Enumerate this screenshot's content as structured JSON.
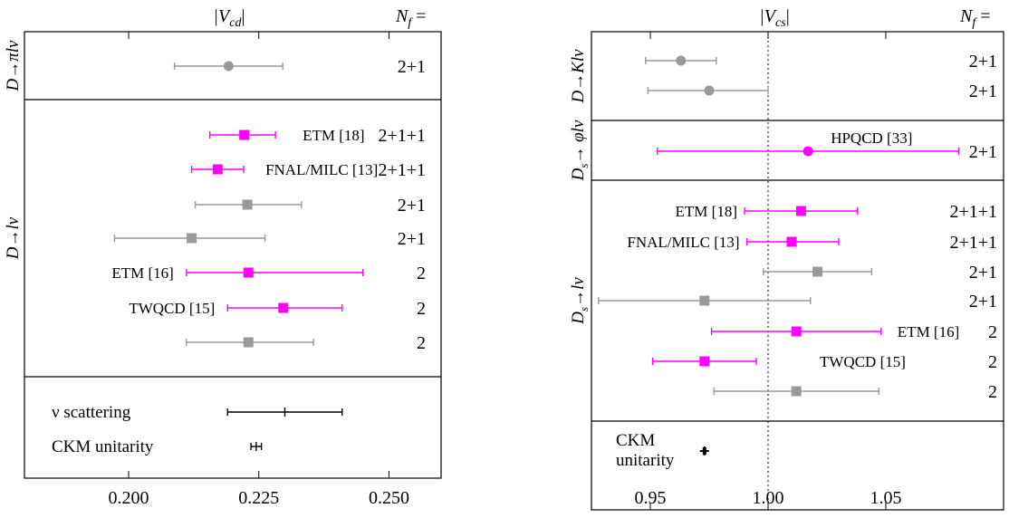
{
  "colors": {
    "lattice_highlight": "#ff00ff",
    "lattice_other": "#999999",
    "experiment": "#000000",
    "frame": "#000000"
  },
  "chart_data": [
    {
      "type": "scatter",
      "subtype": "error-bar forest plot",
      "title": "|V_cd|",
      "title_parts": [
        "|V",
        "cd",
        "|"
      ],
      "nf_header": "N_f =",
      "nf_header_parts": [
        "N",
        "f",
        " ="
      ],
      "xlim": [
        0.18,
        0.26
      ],
      "xticks": [
        0.2,
        0.225,
        0.25
      ],
      "xtick_labels": [
        "0.200",
        "0.225",
        "0.250"
      ],
      "reference_line": null,
      "sections": [
        {
          "label": "D→πlν",
          "label_parts": {
            "main": "D→πlν",
            "sub": ""
          },
          "rows": 1
        },
        {
          "label": "D→lν",
          "label_parts": {
            "main": "D→lν",
            "sub": ""
          },
          "rows": 7
        },
        {
          "label": "",
          "label_parts": {
            "main": "",
            "sub": ""
          },
          "rows": 2
        }
      ],
      "points": [
        {
          "section": 0,
          "value": 0.2192,
          "lo": 0.2088,
          "hi": 0.2296,
          "marker": "circle",
          "color": "gray",
          "label": "",
          "nf": "2+1"
        },
        {
          "section": 1,
          "value": 0.2222,
          "lo": 0.2156,
          "hi": 0.2282,
          "marker": "square",
          "color": "magenta",
          "label": "ETM [18]",
          "nf": "2+1+1"
        },
        {
          "section": 1,
          "value": 0.2171,
          "lo": 0.2121,
          "hi": 0.2221,
          "marker": "square",
          "color": "magenta",
          "label": "FNAL/MILC [13]",
          "nf": "2+1+1"
        },
        {
          "section": 1,
          "value": 0.2228,
          "lo": 0.2128,
          "hi": 0.2332,
          "marker": "square",
          "color": "gray",
          "label": "",
          "nf": "2+1"
        },
        {
          "section": 1,
          "value": 0.2121,
          "lo": 0.1973,
          "hi": 0.2262,
          "marker": "square",
          "color": "gray",
          "label": "",
          "nf": "2+1"
        },
        {
          "section": 1,
          "value": 0.223,
          "lo": 0.2111,
          "hi": 0.245,
          "marker": "square",
          "color": "magenta",
          "label": "ETM [16]",
          "nf": "2"
        },
        {
          "section": 1,
          "value": 0.2297,
          "lo": 0.219,
          "hi": 0.241,
          "marker": "square",
          "color": "magenta",
          "label": "TWQCD [15]",
          "nf": "2"
        },
        {
          "section": 1,
          "value": 0.223,
          "lo": 0.2111,
          "hi": 0.2355,
          "marker": "square",
          "color": "gray",
          "label": "",
          "nf": "2"
        },
        {
          "section": 2,
          "value": 0.23,
          "lo": 0.219,
          "hi": 0.241,
          "marker": "tick",
          "color": "black",
          "label": "ν scattering",
          "nf": ""
        },
        {
          "section": 2,
          "value": 0.2245,
          "lo": 0.2235,
          "hi": 0.2255,
          "marker": "tick",
          "color": "black",
          "label": "CKM unitarity",
          "nf": ""
        }
      ]
    },
    {
      "type": "scatter",
      "subtype": "error-bar forest plot",
      "title": "|V_cs|",
      "title_parts": [
        "|V",
        "cs",
        "|"
      ],
      "nf_header": "N_f =",
      "nf_header_parts": [
        "N",
        "f",
        " ="
      ],
      "xlim": [
        0.925,
        1.1
      ],
      "xticks": [
        0.95,
        1.0,
        1.05
      ],
      "xtick_labels": [
        "0.95",
        "1.00",
        "1.05"
      ],
      "reference_line": 1.0,
      "sections": [
        {
          "label": "D→Klν",
          "label_parts": {
            "main": "D→Klν",
            "sub": ""
          },
          "rows": 2
        },
        {
          "label": "D_s→ φlν",
          "label_parts": {
            "main": "D",
            "sub": "s",
            "rest": "→ φlν"
          },
          "rows": 1
        },
        {
          "label": "D_s→lν",
          "label_parts": {
            "main": "D",
            "sub": "s",
            "rest": "→lν"
          },
          "rows": 7
        },
        {
          "label": "",
          "label_parts": {
            "main": "",
            "sub": ""
          },
          "rows": 1
        }
      ],
      "points": [
        {
          "section": 0,
          "value": 0.963,
          "lo": 0.948,
          "hi": 0.978,
          "marker": "circle",
          "color": "gray",
          "label": "",
          "nf": "2+1"
        },
        {
          "section": 0,
          "value": 0.975,
          "lo": 0.949,
          "hi": 1.0,
          "marker": "circle",
          "color": "gray",
          "label": "",
          "nf": "2+1"
        },
        {
          "section": 1,
          "value": 1.017,
          "lo": 0.953,
          "hi": 1.081,
          "marker": "circle",
          "color": "magenta",
          "label": "HPQCD [33]",
          "nf": "2+1"
        },
        {
          "section": 2,
          "value": 1.014,
          "lo": 0.99,
          "hi": 1.038,
          "marker": "square",
          "color": "magenta",
          "label": "ETM [18]",
          "nf": "2+1+1"
        },
        {
          "section": 2,
          "value": 1.01,
          "lo": 0.991,
          "hi": 1.03,
          "marker": "square",
          "color": "magenta",
          "label": "FNAL/MILC [13]",
          "nf": "2+1+1"
        },
        {
          "section": 2,
          "value": 1.021,
          "lo": 0.998,
          "hi": 1.044,
          "marker": "square",
          "color": "gray",
          "label": "",
          "nf": "2+1"
        },
        {
          "section": 2,
          "value": 0.973,
          "lo": 0.928,
          "hi": 1.018,
          "marker": "square",
          "color": "gray",
          "label": "",
          "nf": "2+1"
        },
        {
          "section": 2,
          "value": 1.012,
          "lo": 0.976,
          "hi": 1.048,
          "marker": "square",
          "color": "magenta",
          "label": "ETM [16]",
          "nf": "2"
        },
        {
          "section": 2,
          "value": 0.973,
          "lo": 0.951,
          "hi": 0.995,
          "marker": "square",
          "color": "magenta",
          "label": "TWQCD [15]",
          "nf": "2"
        },
        {
          "section": 2,
          "value": 1.012,
          "lo": 0.977,
          "hi": 1.047,
          "marker": "square",
          "color": "gray",
          "label": "",
          "nf": "2"
        },
        {
          "section": 3,
          "value": 0.973,
          "lo": 0.9725,
          "hi": 0.9735,
          "marker": "plus",
          "color": "black",
          "label": "CKM\nunitarity",
          "nf": ""
        }
      ]
    }
  ]
}
